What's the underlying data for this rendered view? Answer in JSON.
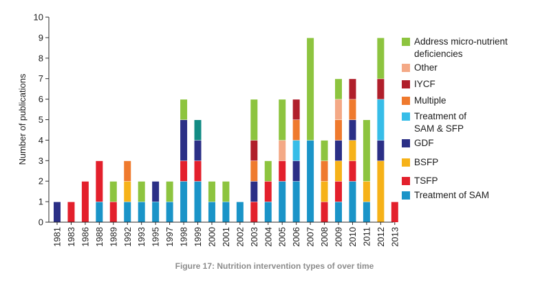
{
  "chart_data": {
    "type": "bar",
    "stacked": true,
    "ylabel": "Number of publications",
    "xlabel": "",
    "ylim": [
      0,
      10
    ],
    "yticks": [
      0,
      1,
      2,
      3,
      4,
      5,
      6,
      7,
      8,
      9,
      10
    ],
    "grid": false,
    "legend_placement": "right",
    "categories": [
      "1981",
      "1983",
      "1986",
      "1988",
      "1989",
      "1992",
      "1993",
      "1995",
      "1997",
      "1998",
      "1999",
      "2000",
      "2001",
      "2002",
      "2003",
      "2004",
      "2005",
      "2006",
      "2007",
      "2008",
      "2009",
      "2010",
      "2011",
      "2012",
      "2013"
    ],
    "series": [
      {
        "name": "Treatment of SAM",
        "color": "#1a94c8",
        "values": [
          0,
          0,
          0,
          1,
          0,
          1,
          1,
          1,
          1,
          2,
          2,
          1,
          1,
          1,
          0,
          1,
          2,
          2,
          4,
          0,
          1,
          2,
          1,
          0,
          0
        ]
      },
      {
        "name": "TSFP",
        "color": "#e3202c",
        "values": [
          0,
          1,
          2,
          2,
          1,
          0,
          0,
          0,
          0,
          1,
          1,
          0,
          0,
          0,
          1,
          1,
          1,
          0,
          0,
          1,
          1,
          1,
          0,
          0,
          1
        ]
      },
      {
        "name": "BSFP",
        "color": "#f6b219",
        "values": [
          0,
          0,
          0,
          0,
          0,
          1,
          0,
          0,
          0,
          0,
          0,
          0,
          0,
          0,
          0,
          0,
          0,
          0,
          0,
          1,
          1,
          1,
          1,
          3,
          0
        ]
      },
      {
        "name": "GDF",
        "color": "#2b2f86",
        "values": [
          1,
          0,
          0,
          0,
          0,
          0,
          0,
          1,
          0,
          2,
          1,
          0,
          0,
          0,
          1,
          0,
          0,
          1,
          0,
          0,
          1,
          1,
          0,
          1,
          0
        ]
      },
      {
        "name": "Treatment of SAM & SFP",
        "color": "#37bde8",
        "values": [
          0,
          0,
          0,
          0,
          0,
          0,
          0,
          0,
          0,
          0,
          0,
          0,
          0,
          0,
          0,
          0,
          0,
          1,
          0,
          0,
          0,
          0,
          0,
          2,
          0
        ]
      },
      {
        "name": "Multiple",
        "color": "#ef7a2e",
        "values": [
          0,
          0,
          0,
          0,
          0,
          1,
          0,
          0,
          0,
          0,
          1,
          0,
          0,
          0,
          1,
          0,
          0,
          1,
          0,
          1,
          1,
          1,
          0,
          0,
          0
        ]
      },
      {
        "name": "IYCF",
        "color": "#b01f2b",
        "values": [
          0,
          0,
          0,
          0,
          0,
          0,
          0,
          0,
          0,
          0,
          0,
          0,
          0,
          0,
          1,
          0,
          0,
          1,
          0,
          0,
          0,
          1,
          0,
          1,
          0
        ]
      },
      {
        "name": "Other",
        "color": "#f4a986",
        "values": [
          0,
          0,
          0,
          0,
          0,
          0,
          0,
          0,
          0,
          0,
          0,
          0,
          0,
          0,
          0,
          0,
          1,
          0,
          0,
          0,
          1,
          0,
          0,
          0,
          0
        ]
      },
      {
        "name": "Address micro-nutrient deficiencies",
        "color": "#8dc43f",
        "values": [
          0,
          0,
          0,
          0,
          1,
          0,
          1,
          0,
          1,
          1,
          0,
          1,
          1,
          0,
          2,
          1,
          2,
          0,
          5,
          1,
          1,
          0,
          3,
          2,
          0
        ]
      }
    ],
    "overrides": [
      {
        "category": "1999",
        "series": "Multiple",
        "color": "#128b84"
      }
    ],
    "legend": [
      {
        "label_lines": [
          "Address micro-nutrient",
          "deficiencies"
        ],
        "color": "#8dc43f"
      },
      {
        "label_lines": [
          "Other"
        ],
        "color": "#f4a986"
      },
      {
        "label_lines": [
          "IYCF"
        ],
        "color": "#b01f2b"
      },
      {
        "label_lines": [
          "Multiple"
        ],
        "color": "#ef7a2e"
      },
      {
        "label_lines": [
          "Treatment of",
          "SAM & SFP"
        ],
        "color": "#37bde8"
      },
      {
        "label_lines": [
          "GDF"
        ],
        "color": "#2b2f86"
      },
      {
        "label_lines": [
          "BSFP"
        ],
        "color": "#f6b219"
      },
      {
        "label_lines": [
          "TSFP"
        ],
        "color": "#e3202c"
      },
      {
        "label_lines": [
          "Treatment of SAM"
        ],
        "color": "#1a94c8"
      }
    ]
  },
  "caption": "Figure 17: Nutrition intervention types of over time"
}
